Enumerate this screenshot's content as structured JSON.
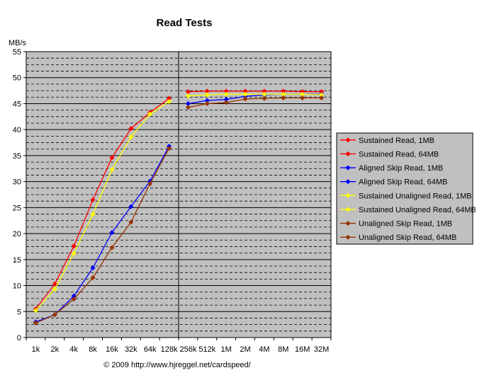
{
  "chart_data": {
    "type": "line",
    "title": "Read Tests",
    "ylabel": "MB/s",
    "xlabel": "",
    "ylim": [
      0,
      55
    ],
    "y_ticks": [
      "0",
      "5",
      "10",
      "15",
      "20",
      "25",
      "30",
      "35",
      "40",
      "45",
      "50",
      "55"
    ],
    "y_major_step": 5,
    "y_minor_step": 1.25,
    "categories": [
      "1k",
      "2k",
      "4k",
      "8k",
      "16k",
      "32k",
      "64k",
      "128k",
      "256k",
      "512k",
      "1M",
      "2M",
      "4M",
      "8M",
      "16M",
      "32M"
    ],
    "grid": true,
    "legend_position": "right",
    "series": [
      {
        "name": "Sustained Read, 1MB",
        "color": "#ff0000",
        "values": [
          5.5,
          10.3,
          17.6,
          26.5,
          34.6,
          40.2,
          43.3,
          46.0,
          null,
          null,
          null,
          null,
          null,
          null,
          null,
          null
        ]
      },
      {
        "name": "Sustained Read, 64MB",
        "color": "#ff0000",
        "values": [
          null,
          null,
          null,
          null,
          null,
          null,
          null,
          null,
          47.3,
          47.4,
          47.4,
          47.4,
          47.4,
          47.4,
          47.3,
          47.3
        ]
      },
      {
        "name": "Aligned Skip Read, 1MB",
        "color": "#0000ff",
        "values": [
          3.0,
          4.4,
          8.0,
          13.4,
          20.2,
          25.2,
          30.1,
          36.8,
          null,
          null,
          null,
          null,
          null,
          null,
          null,
          null
        ]
      },
      {
        "name": "Aligned Skip Read, 64MB",
        "color": "#0000ff",
        "values": [
          null,
          null,
          null,
          null,
          null,
          null,
          null,
          null,
          45.0,
          45.6,
          45.8,
          46.4,
          46.7,
          46.8,
          46.8,
          46.8
        ]
      },
      {
        "name": "Sustained Unaligned Read, 1MB",
        "color": "#ffff00",
        "values": [
          5.2,
          9.3,
          16.2,
          23.7,
          32.3,
          38.6,
          43.0,
          45.4,
          null,
          null,
          null,
          null,
          null,
          null,
          null,
          null
        ]
      },
      {
        "name": "Sustained Unaligned Read, 64MB",
        "color": "#ffff00",
        "values": [
          null,
          null,
          null,
          null,
          null,
          null,
          null,
          null,
          46.5,
          46.7,
          46.8,
          46.8,
          46.8,
          46.8,
          46.8,
          46.7
        ]
      },
      {
        "name": "Unaligned Skip Read, 1MB",
        "color": "#993300",
        "values": [
          2.8,
          4.4,
          7.4,
          11.5,
          17.3,
          22.2,
          29.6,
          36.4,
          null,
          null,
          null,
          null,
          null,
          null,
          null,
          null
        ]
      },
      {
        "name": "Unaligned Skip Read, 64MB",
        "color": "#993300",
        "values": [
          null,
          null,
          null,
          null,
          null,
          null,
          null,
          null,
          44.3,
          45.0,
          45.2,
          45.9,
          46.0,
          46.1,
          46.1,
          46.1
        ]
      }
    ],
    "separator_between": [
      "128k",
      "256k"
    ]
  },
  "colors": {
    "plot_background": "#c0c0c0",
    "legend_background": "#c0c0c0"
  },
  "footer": "© 2009   http://www.hjreggel.net/cardspeed/"
}
